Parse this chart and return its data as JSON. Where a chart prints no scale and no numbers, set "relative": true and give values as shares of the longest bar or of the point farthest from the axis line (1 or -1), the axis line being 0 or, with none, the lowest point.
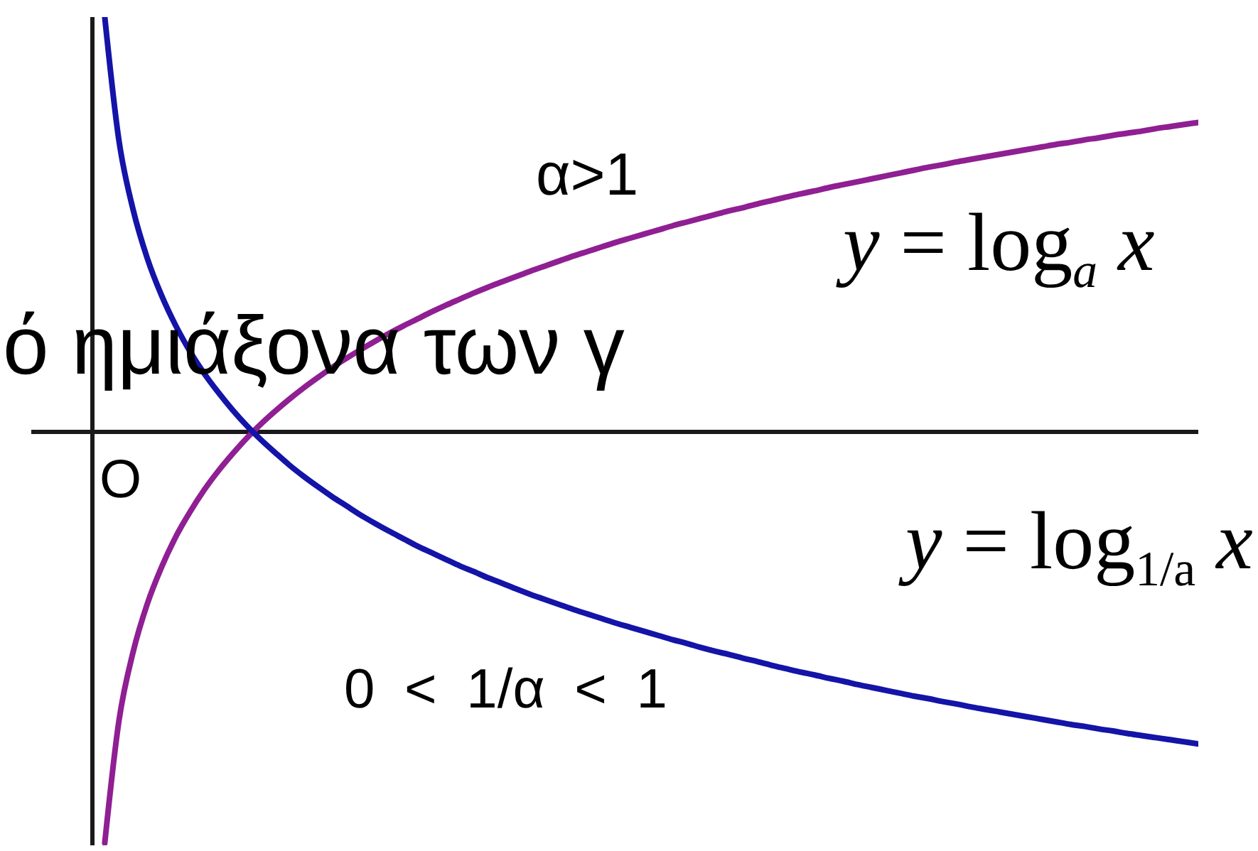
{
  "chart_data": {
    "type": "line",
    "relative": true,
    "marker": "none",
    "categories": [
      null,
      null,
      null,
      null,
      null,
      null,
      null,
      null,
      null,
      null,
      null,
      null,
      null,
      null,
      null,
      null,
      null,
      null,
      null,
      null,
      null,
      null,
      null,
      null,
      null,
      null,
      null,
      null,
      null,
      null,
      null,
      null,
      null,
      null,
      null,
      null,
      null,
      null,
      null,
      null,
      null,
      null,
      null,
      null,
      null,
      null,
      null,
      null,
      null,
      null,
      null,
      null,
      null,
      null,
      null,
      null,
      null,
      null,
      null,
      null,
      null,
      null,
      null,
      null,
      null,
      null,
      null,
      null,
      null,
      null,
      null,
      null,
      null,
      null,
      null,
      null,
      null,
      null
    ],
    "series": [
      {
        "name": "y = log$_{a}$ x",
        "color": "#8f1f93",
        "values": [
          -0.991,
          -0.696,
          -0.53,
          -0.414,
          -0.326,
          -0.253,
          -0.193,
          -0.14,
          -0.094,
          -0.053,
          -0.015,
          0.019,
          0.05,
          0.079,
          0.106,
          0.131,
          0.155,
          0.177,
          0.198,
          0.218,
          0.237,
          0.255,
          0.272,
          0.289,
          0.305,
          0.32,
          0.335,
          0.349,
          0.362,
          0.375,
          0.388,
          0.4,
          0.412,
          0.424,
          0.435,
          0.446,
          0.457,
          0.467,
          0.477,
          0.487,
          0.497,
          0.506,
          0.515,
          0.524,
          0.533,
          0.541,
          0.55,
          0.558,
          0.566,
          0.574,
          0.581,
          0.589,
          0.596,
          0.603,
          0.61,
          0.617,
          0.624,
          0.631,
          0.638,
          0.644,
          0.651,
          0.657,
          0.663,
          0.669,
          0.675,
          0.681,
          0.687,
          0.693,
          0.698,
          0.704,
          0.709,
          0.715,
          0.72,
          0.725,
          0.731,
          0.736,
          0.741,
          0.746
        ]
      },
      {
        "name": "y = log$_{1/a}$ x",
        "color": "#1414a8",
        "values": [
          1.0,
          0.702,
          0.535,
          0.418,
          0.329,
          0.256,
          0.194,
          0.141,
          0.095,
          0.053,
          0.015,
          -0.019,
          -0.05,
          -0.08,
          -0.107,
          -0.132,
          -0.156,
          -0.178,
          -0.2,
          -0.22,
          -0.239,
          -0.257,
          -0.275,
          -0.291,
          -0.307,
          -0.323,
          -0.337,
          -0.352,
          -0.365,
          -0.379,
          -0.392,
          -0.404,
          -0.416,
          -0.428,
          -0.439,
          -0.45,
          -0.461,
          -0.471,
          -0.481,
          -0.491,
          -0.501,
          -0.51,
          -0.52,
          -0.529,
          -0.537,
          -0.546,
          -0.554,
          -0.563,
          -0.571,
          -0.579,
          -0.586,
          -0.594,
          -0.601,
          -0.609,
          -0.616,
          -0.623,
          -0.63,
          -0.637,
          -0.643,
          -0.65,
          -0.656,
          -0.663,
          -0.669,
          -0.675,
          -0.681,
          -0.687,
          -0.693,
          -0.699,
          -0.705,
          -0.71,
          -0.716,
          -0.721,
          -0.727,
          -0.732,
          -0.737,
          -0.742,
          -0.747,
          -0.752
        ]
      }
    ],
    "annotations": [
      "α>1",
      "0 < 1/α < 1",
      "O",
      "ό ημιάξονα των γ"
    ]
  }
}
